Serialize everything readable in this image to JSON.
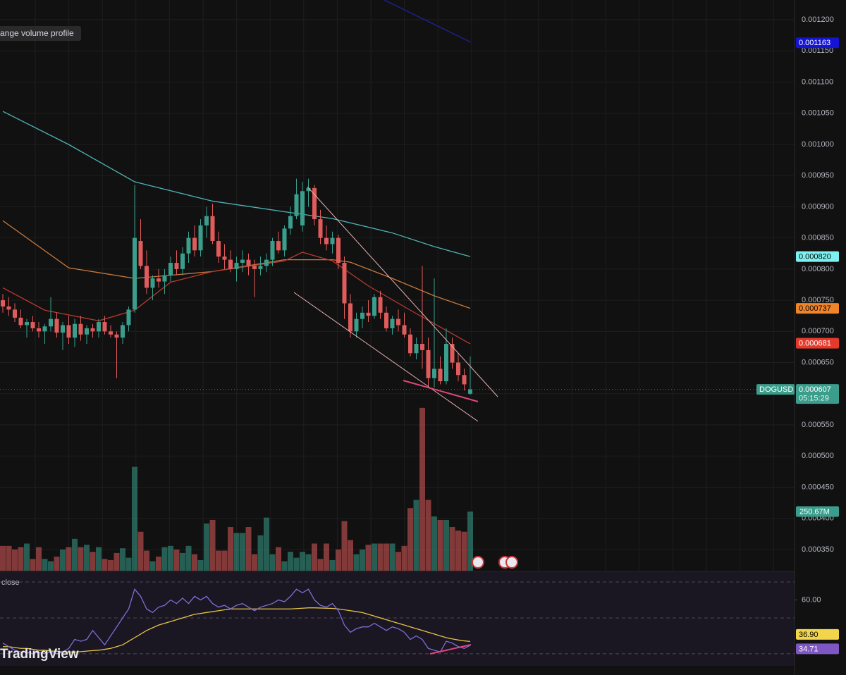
{
  "chart_data": {
    "type": "candlestick",
    "overlay_label": "ange volume profile",
    "brand": "TradingView",
    "ylim": [
      0.000316,
      0.0012317
    ],
    "yticks": [
      {
        "value": 0.00035,
        "label": "0.000350"
      },
      {
        "value": 0.0004,
        "label": "0.000400"
      },
      {
        "value": 0.00045,
        "label": "0.000450"
      },
      {
        "value": 0.0005,
        "label": "0.000500"
      },
      {
        "value": 0.00055,
        "label": "0.000550"
      },
      {
        "value": 0.0006,
        "label": "0.000600"
      },
      {
        "value": 0.00065,
        "label": "0.000650"
      },
      {
        "value": 0.0007,
        "label": "0.000700"
      },
      {
        "value": 0.00075,
        "label": "0.000750"
      },
      {
        "value": 0.0008,
        "label": "0.000800"
      },
      {
        "value": 0.00085,
        "label": "0.000850"
      },
      {
        "value": 0.0009,
        "label": "0.000900"
      },
      {
        "value": 0.00095,
        "label": "0.000950"
      },
      {
        "value": 0.001,
        "label": "0.001000"
      },
      {
        "value": 0.00105,
        "label": "0.001050"
      },
      {
        "value": 0.0011,
        "label": "0.001100"
      },
      {
        "value": 0.00115,
        "label": "0.001150"
      },
      {
        "value": 0.0012,
        "label": "0.001200"
      }
    ],
    "grid": true,
    "up_color": "#3b9e8c",
    "down_color": "#e05b5b",
    "open": [
      0.00075,
      0.00074,
      0.000735,
      0.000722,
      0.00071,
      0.000715,
      0.000705,
      0.0007,
      0.000708,
      0.00072,
      0.000698,
      0.00071,
      0.00069,
      0.000712,
      0.000695,
      0.000705,
      0.0007,
      0.000715,
      0.0007,
      0.000695,
      0.00069,
      0.00071,
      0.000735,
      0.000845,
      0.000805,
      0.00077,
      0.000785,
      0.00078,
      0.00079,
      0.00081,
      0.0008,
      0.000825,
      0.00085,
      0.00083,
      0.00087,
      0.000885,
      0.000845,
      0.00082,
      0.000815,
      0.0008,
      0.00081,
      0.000815,
      0.000805,
      0.0008,
      0.000805,
      0.000815,
      0.000845,
      0.00083,
      0.000865,
      0.000885,
      0.00087,
      0.000925,
      0.00093,
      0.00088,
      0.00085,
      0.00084,
      0.00085,
      0.00081,
      0.000745,
      0.0007,
      0.00072,
      0.00073,
      0.000725,
      0.000755,
      0.00073,
      0.000705,
      0.00072,
      0.00071,
      0.000695,
      0.000665,
      0.00068,
      0.00067,
      0.000625,
      0.00064,
      0.00062,
      0.00068,
      0.00065,
      0.00063,
      0.0006
    ],
    "high": [
      0.00076,
      0.000755,
      0.000745,
      0.000735,
      0.00072,
      0.000725,
      0.000715,
      0.000712,
      0.000755,
      0.00073,
      0.000715,
      0.000725,
      0.00072,
      0.000725,
      0.00071,
      0.000712,
      0.00072,
      0.000725,
      0.00071,
      0.0007,
      0.000715,
      0.00074,
      0.000935,
      0.00088,
      0.00083,
      0.00079,
      0.0008,
      0.0008,
      0.00082,
      0.00083,
      0.000835,
      0.00086,
      0.00087,
      0.00088,
      0.0009,
      0.000905,
      0.00086,
      0.00084,
      0.00083,
      0.00082,
      0.00083,
      0.000825,
      0.000815,
      0.00082,
      0.000825,
      0.00085,
      0.00086,
      0.00087,
      0.0009,
      0.000945,
      0.00094,
      0.000945,
      0.000935,
      0.000895,
      0.00087,
      0.00086,
      0.000855,
      0.00082,
      0.00076,
      0.00073,
      0.00074,
      0.00075,
      0.00076,
      0.000765,
      0.00074,
      0.000725,
      0.000735,
      0.00073,
      0.000705,
      0.00069,
      0.000805,
      0.00069,
      0.000785,
      0.00066,
      0.000705,
      0.00069,
      0.000665,
      0.00064,
      0.00066
    ],
    "low": [
      0.00073,
      0.000725,
      0.000715,
      0.000705,
      0.00069,
      0.0007,
      0.00069,
      0.00068,
      0.0007,
      0.00069,
      0.00067,
      0.00068,
      0.000675,
      0.000685,
      0.00068,
      0.00069,
      0.00069,
      0.000695,
      0.00069,
      0.000625,
      0.00068,
      0.0007,
      0.00073,
      0.0008,
      0.00076,
      0.00075,
      0.00077,
      0.00076,
      0.00078,
      0.00079,
      0.00079,
      0.00081,
      0.00082,
      0.00082,
      0.00085,
      0.00084,
      0.00081,
      0.0008,
      0.000795,
      0.00078,
      0.000795,
      0.00079,
      0.000755,
      0.00079,
      0.000795,
      0.000805,
      0.000825,
      0.00082,
      0.000855,
      0.00088,
      0.00086,
      0.0009,
      0.00087,
      0.00084,
      0.00083,
      0.000825,
      0.0008,
      0.00072,
      0.00069,
      0.00069,
      0.000705,
      0.000715,
      0.00072,
      0.00072,
      0.0007,
      0.000695,
      0.0007,
      0.00069,
      0.00066,
      0.000655,
      0.00064,
      0.00061,
      0.00061,
      0.000615,
      0.000615,
      0.00064,
      0.00062,
      0.000605,
      0.000598
    ],
    "close": [
      0.00074,
      0.000735,
      0.000722,
      0.00071,
      0.000715,
      0.000705,
      0.0007,
      0.000708,
      0.00072,
      0.000698,
      0.00071,
      0.00069,
      0.000712,
      0.000695,
      0.000705,
      0.0007,
      0.000715,
      0.0007,
      0.000695,
      0.00069,
      0.00071,
      0.000735,
      0.00085,
      0.000805,
      0.00077,
      0.000785,
      0.00078,
      0.00079,
      0.00081,
      0.0008,
      0.000825,
      0.00085,
      0.00083,
      0.00087,
      0.000885,
      0.000845,
      0.00082,
      0.000815,
      0.0008,
      0.00081,
      0.000815,
      0.000805,
      0.0008,
      0.000805,
      0.000815,
      0.000845,
      0.00083,
      0.000865,
      0.000885,
      0.00092,
      0.000925,
      0.00093,
      0.00088,
      0.00085,
      0.00084,
      0.00085,
      0.00081,
      0.000745,
      0.0007,
      0.00072,
      0.00073,
      0.000725,
      0.000755,
      0.00073,
      0.000705,
      0.00072,
      0.00071,
      0.000695,
      0.000665,
      0.00068,
      0.00067,
      0.000625,
      0.00064,
      0.00062,
      0.00068,
      0.00065,
      0.00063,
      0.000615,
      0.000607
    ],
    "moving_averages": [
      {
        "color": "#4fb3b5",
        "x": [
          0,
          11,
          22,
          35,
          47,
          55,
          65,
          72,
          78
        ],
        "values": [
          0.001053,
          0.0009998,
          0.00094,
          0.000909,
          0.000892,
          0.000881,
          0.000858,
          0.000836,
          0.00082
        ]
      },
      {
        "color": "#c97a3c",
        "x": [
          0,
          11,
          22,
          35,
          47,
          55,
          58,
          65,
          72,
          78
        ],
        "values": [
          0.0008776,
          0.000802,
          0.000785,
          0.000796,
          0.000815,
          0.000815,
          0.000811,
          0.000785,
          0.000757,
          0.000737
        ]
      },
      {
        "color": "#b83a30",
        "x": [
          0,
          7,
          16,
          22,
          28,
          35,
          47,
          50,
          55,
          61,
          68,
          78
        ],
        "values": [
          0.00077,
          0.000734,
          0.000717,
          0.000734,
          0.000779,
          0.000796,
          0.000813,
          0.000827,
          0.000813,
          0.000773,
          0.000734,
          0.00068
        ]
      }
    ],
    "price_tags": [
      {
        "value": 0.001163,
        "label": "0.001163",
        "color": "#1414d2",
        "text_color": "#ffffff"
      },
      {
        "value": 0.00082,
        "label": "0.000820",
        "color": "#7ef2f2",
        "text_color": "#000000"
      },
      {
        "value": 0.000737,
        "label": "0.000737",
        "color": "#f0842b",
        "text_color": "#000000"
      },
      {
        "value": 0.000681,
        "label": "0.000681",
        "color": "#e53a2b",
        "text_color": "#ffffff"
      }
    ],
    "last_price": {
      "symbol": "DOGUSD",
      "value": 0.000607,
      "countdown": "05:15:29",
      "color": "#3b9e8c"
    },
    "volume_lim": [
      0,
      1000
    ],
    "volume": [
      105,
      105,
      90,
      100,
      115,
      50,
      100,
      50,
      40,
      60,
      90,
      100,
      135,
      100,
      110,
      80,
      100,
      50,
      45,
      75,
      95,
      55,
      440,
      165,
      85,
      40,
      60,
      100,
      105,
      90,
      75,
      105,
      70,
      45,
      200,
      215,
      85,
      85,
      185,
      160,
      160,
      185,
      70,
      150,
      225,
      70,
      100,
      40,
      80,
      55,
      80,
      70,
      115,
      50,
      115,
      45,
      90,
      210,
      130,
      70,
      90,
      110,
      115,
      115,
      115,
      115,
      80,
      105,
      265,
      300,
      690,
      300,
      230,
      215,
      215,
      185,
      170,
      165,
      250.67
    ],
    "volume_tag": {
      "value": 250.67,
      "label": "250.67M"
    },
    "rsi_label": "close",
    "rsi_lim": [
      23.3,
      75.5
    ],
    "rsi_bands": [
      70,
      50,
      30
    ],
    "rsi_ticks": [
      {
        "value": 60,
        "label": "60.00"
      }
    ],
    "rsi_color": "#7e6ed6",
    "rsi_ma_color": "#e5c545",
    "rsi": [
      36,
      34,
      32,
      31,
      31,
      30,
      31,
      30,
      31,
      30,
      31,
      33,
      38,
      37,
      38,
      43,
      39,
      35,
      40,
      45,
      50,
      55,
      66,
      62,
      55,
      53,
      56,
      57,
      60,
      58,
      61,
      58,
      62,
      60,
      62,
      58,
      56,
      57,
      55,
      57,
      58,
      56,
      54,
      56,
      57,
      58,
      60,
      59,
      62,
      66,
      64,
      66,
      60,
      57,
      56,
      58,
      54,
      46,
      42,
      44,
      45,
      45,
      47,
      45,
      43,
      45,
      44,
      42,
      38,
      40,
      38,
      33,
      32,
      31,
      37,
      36,
      34,
      33,
      34.71
    ],
    "rsi_ma": [
      34,
      34,
      33.5,
      33,
      33,
      32.5,
      32,
      32,
      31.5,
      31.5,
      31,
      31,
      31,
      31.2,
      31.5,
      31.8,
      32,
      32.5,
      33,
      34,
      35,
      37,
      39,
      41,
      43,
      44.5,
      46,
      47,
      48,
      49,
      50,
      51,
      52,
      52.5,
      53,
      53.5,
      54,
      54.5,
      55,
      55,
      55,
      55,
      55,
      55,
      55,
      55,
      55,
      55,
      55,
      55.2,
      55.4,
      55.6,
      55.6,
      55.5,
      55.4,
      55.3,
      55,
      54.5,
      54,
      53.5,
      53,
      52,
      51,
      50,
      49,
      48,
      47,
      46,
      45,
      44,
      43,
      42,
      41,
      40,
      39,
      38.3,
      37.7,
      37.2,
      36.9
    ],
    "rsi_tags": [
      {
        "value": 36.9,
        "label": "36.90",
        "color": "#f2d54a",
        "text_color": "#000000"
      },
      {
        "value": 34.71,
        "label": "34.71",
        "color": "#7e57c2",
        "text_color": "#ffffff"
      }
    ]
  }
}
